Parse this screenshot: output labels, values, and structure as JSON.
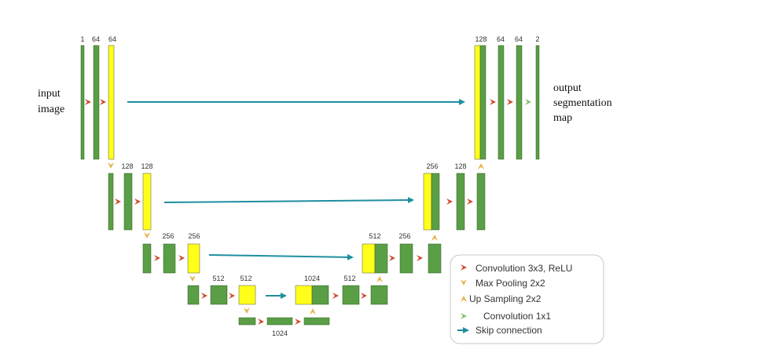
{
  "colors": {
    "feature_map": "#5a9e45",
    "copied_map": "#ffff1a",
    "map_border": "#2f5f22",
    "conv": "#d14a2b",
    "pool": "#e8b24a",
    "upsample": "#e8b24a",
    "conv1x1": "#7fc06a",
    "skip": "#1f8ea0",
    "legend_border": "#c8c8c8"
  },
  "input_label": [
    "input",
    "image"
  ],
  "output_label": [
    "output",
    "segmentation",
    "map"
  ],
  "channel_labels": {
    "c1": "1",
    "c2": "64",
    "c3": "64",
    "c4": "128",
    "c5": "128",
    "c6": "256",
    "c7": "256",
    "c8": "512",
    "c9": "512",
    "c10": "1024",
    "c11": "1024",
    "c12": "512",
    "c13": "512",
    "c14": "256",
    "c15": "256",
    "c16": "128",
    "c17": "128",
    "c18": "64",
    "c19": "64",
    "c20": "2"
  },
  "legend": [
    {
      "label": "Convolution 3x3, ReLU",
      "icon": "conv-arrow-icon"
    },
    {
      "label": "Max Pooling 2x2",
      "icon": "pool-arrow-icon"
    },
    {
      "label": "Up Sampling 2x2",
      "icon": "upsample-arrow-icon"
    },
    {
      "label": "Convolution 1x1",
      "icon": "conv1x1-arrow-icon"
    },
    {
      "label": "Skip connection",
      "icon": "skip-arrow-icon"
    }
  ]
}
